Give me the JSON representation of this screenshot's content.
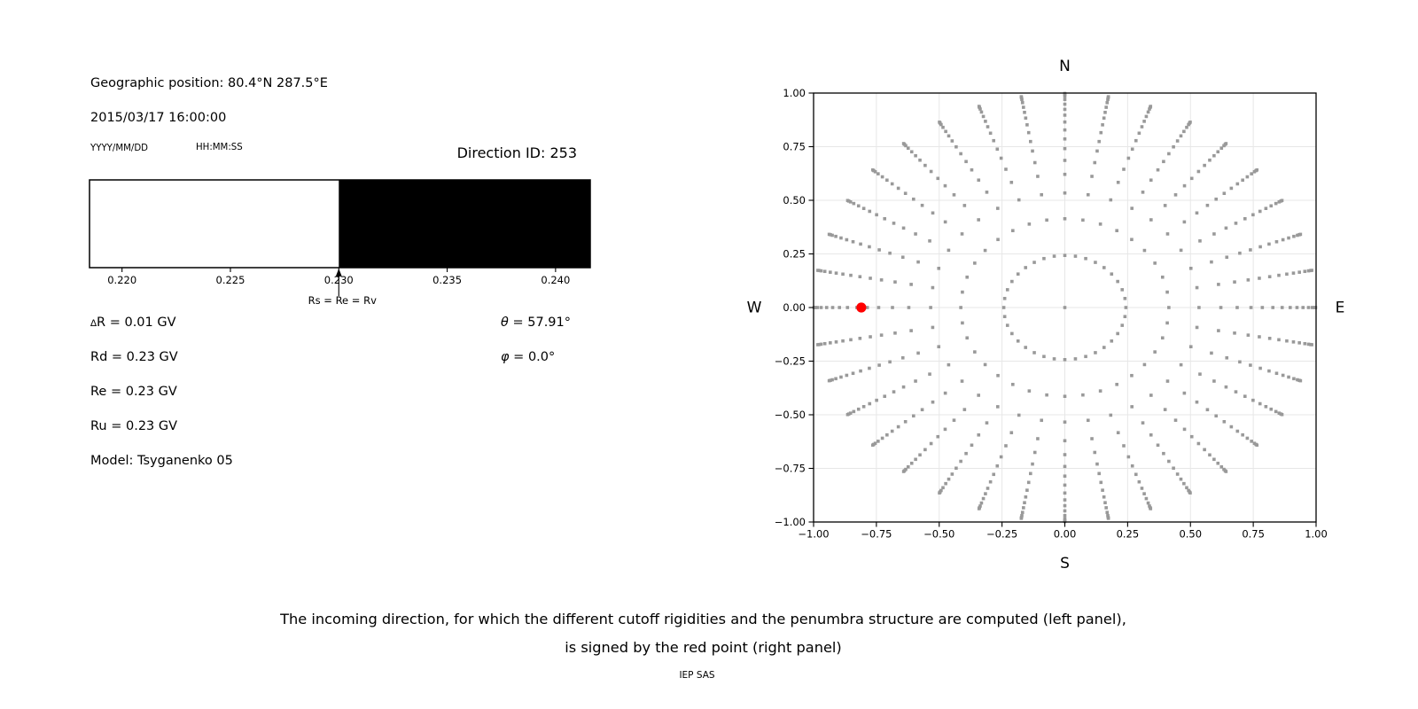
{
  "info_panel": {
    "geo_position": "Geographic position: 80.4°N 287.5°E",
    "datetime": "2015/03/17 16:00:00",
    "date_format_hint": "YYYY/MM/DD",
    "time_format_hint": "HH:MM:SS",
    "direction_id_label": "Direction ID: 253",
    "delta_r_symbol": "∆",
    "delta_r_value": "R = 0.01 GV",
    "rd": "Rd = 0.23 GV",
    "re": "Re = 0.23 GV",
    "ru": "Ru = 0.23 GV",
    "model": "Model: Tsyganenko 05",
    "theta_symbol": "θ",
    "theta_value": " = 57.91°",
    "phi_symbol": "φ",
    "phi_value": " = 0.0°"
  },
  "caption": {
    "line1": "The incoming direction, for which the different cutoff rigidities and the penumbra structure are computed (left panel),",
    "line2": "is signed by the red point (right panel)",
    "credit": "IEP SAS"
  },
  "chart_data": [
    {
      "id": "penumbra-bar",
      "type": "bar",
      "description": "Penumbra structure strip: white = allowed rigidity band, black = forbidden band",
      "xlabel": "Rigidity (GV)",
      "xlim": [
        0.2185,
        0.2416
      ],
      "xticks": [
        0.22,
        0.225,
        0.23,
        0.235,
        0.24
      ],
      "xtick_labels": [
        "0.220",
        "0.225",
        "0.230",
        "0.235",
        "0.240"
      ],
      "segments": [
        {
          "from": 0.2185,
          "to": 0.23,
          "color": "#ffffff",
          "meaning": "allowed"
        },
        {
          "from": 0.23,
          "to": 0.2416,
          "color": "#000000",
          "meaning": "forbidden"
        }
      ],
      "annotation": {
        "text": "Rs = Re = Rv",
        "x": 0.23
      }
    },
    {
      "id": "direction-map",
      "type": "scatter",
      "description": "Grid of incoming directions projected on the horizon circle; red point marks the selected direction",
      "xlim": [
        -1.0,
        1.0
      ],
      "ylim": [
        -1.0,
        1.0
      ],
      "xticks": [
        -1.0,
        -0.75,
        -0.5,
        -0.25,
        0.0,
        0.25,
        0.5,
        0.75,
        1.0
      ],
      "yticks": [
        1.0,
        0.75,
        0.5,
        0.25,
        0.0,
        -0.25,
        -0.5,
        -0.75,
        -1.0
      ],
      "xtick_labels": [
        "−1.00",
        "−0.75",
        "−0.50",
        "−0.25",
        "0.00",
        "0.25",
        "0.50",
        "0.75",
        "1.00"
      ],
      "ytick_labels": [
        "1.00",
        "0.75",
        "0.50",
        "0.25",
        "0.00",
        "−0.25",
        "−0.50",
        "−0.75",
        "−1.00"
      ],
      "grid": true,
      "cardinal_labels": {
        "top": "N",
        "bottom": "S",
        "left": "W",
        "right": "E"
      },
      "series": [
        {
          "name": "direction-grid",
          "marker": "square",
          "color": "#999999",
          "azimuth_step_deg": 10,
          "ring_radii": [
            0.243,
            0.414,
            0.534,
            0.621,
            0.686,
            0.741,
            0.786,
            0.828,
            0.865,
            0.897,
            0.924,
            0.948,
            0.97,
            0.985,
            0.993,
            0.998
          ],
          "includes_center_point": true
        },
        {
          "name": "selected-direction",
          "marker": "circle",
          "color": "#ff0000",
          "points": [
            {
              "x": -0.81,
              "y": 0.0
            }
          ]
        }
      ]
    }
  ]
}
